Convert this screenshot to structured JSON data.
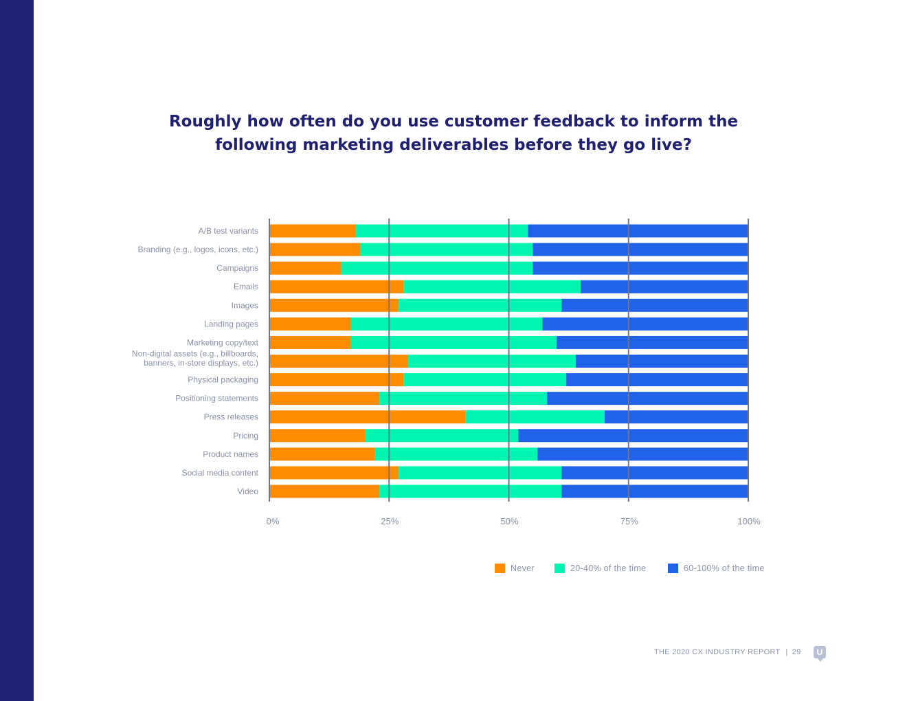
{
  "title_lines": [
    "Roughly how often do you use customer feedback to inform the",
    "following marketing deliverables before they go live?"
  ],
  "footer": {
    "report": "THE 2020 CX INDUSTRY REPORT",
    "separator": "|",
    "page": "29"
  },
  "logo": {
    "icon": "u-chat-bubble-icon",
    "letter": "U"
  },
  "colors": {
    "band": "#202374",
    "title": "#1f2070",
    "never": "#ff8c00",
    "sometimes": "#00f5b0",
    "often": "#2063e8",
    "grid": "#6e7791",
    "label": "#8a92ac"
  },
  "chart_data": {
    "type": "bar",
    "orientation": "horizontal",
    "stacked": true,
    "title": "Roughly how often do you use customer feedback to inform the following marketing deliverables before they go live?",
    "xlabel": "",
    "ylabel": "",
    "xlim": [
      0,
      100
    ],
    "ticks": [
      "0%",
      "25%",
      "50%",
      "75%",
      "100%"
    ],
    "tick_values": [
      0,
      25,
      50,
      75,
      100
    ],
    "legend_position": "bottom-right",
    "categories": [
      [
        "A/B test variants"
      ],
      [
        "Branding (e.g., logos, icons, etc.)"
      ],
      [
        "Campaigns"
      ],
      [
        "Emails"
      ],
      [
        "Images"
      ],
      [
        "Landing pages"
      ],
      [
        "Marketing copy/text"
      ],
      [
        "Non-digital assets (e.g., billboards,",
        "banners, in-store displays, etc.)"
      ],
      [
        "Physical packaging"
      ],
      [
        "Positioning statements"
      ],
      [
        "Press releases"
      ],
      [
        "Pricing"
      ],
      [
        "Product names"
      ],
      [
        "Social media content"
      ],
      [
        "Video"
      ]
    ],
    "series": [
      {
        "name": "Never",
        "color": "#ff8c00",
        "values": [
          18,
          19,
          15,
          28,
          27,
          17,
          17,
          29,
          28,
          23,
          41,
          20,
          22,
          27,
          23
        ]
      },
      {
        "name": "20-40% of the time",
        "color": "#00f5b0",
        "values": [
          36,
          36,
          40,
          37,
          34,
          40,
          43,
          35,
          34,
          35,
          29,
          32,
          34,
          34,
          38
        ]
      },
      {
        "name": "60-100% of the time",
        "color": "#2063e8",
        "values": [
          46,
          45,
          45,
          35,
          39,
          43,
          40,
          36,
          38,
          42,
          30,
          48,
          44,
          39,
          39
        ]
      }
    ]
  }
}
